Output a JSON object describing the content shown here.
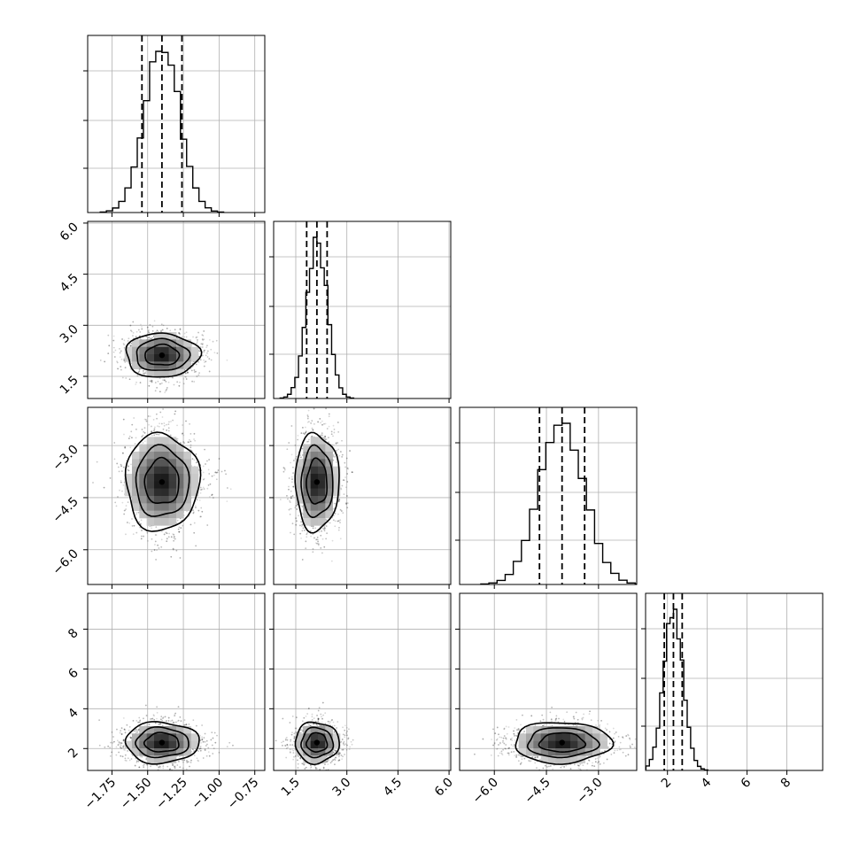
{
  "chart_data": {
    "type": "corner",
    "title": "",
    "parameters": [
      {
        "label": "",
        "range": [
          -1.92,
          -0.68
        ],
        "ticks": [
          -1.75,
          -1.5,
          -1.25,
          -1.0,
          -0.75
        ],
        "tick_labels": [
          "−1.75",
          "−1.50",
          "−1.25",
          "−1.00",
          "−0.75"
        ],
        "mean": -1.4,
        "std": 0.12,
        "quantiles": [
          -1.54,
          -1.4,
          -1.26
        ]
      },
      {
        "label": "",
        "range": [
          0.85,
          6.05
        ],
        "ticks": [
          1.5,
          3.0,
          4.5,
          6.0
        ],
        "tick_labels": [
          "1.5",
          "3.0",
          "4.5",
          "6.0"
        ],
        "mean": 2.12,
        "std": 0.3,
        "quantiles": [
          1.82,
          2.12,
          2.42
        ]
      },
      {
        "label": "",
        "range": [
          -7.0,
          -1.9
        ],
        "ticks": [
          -6.0,
          -4.5,
          -3.0
        ],
        "tick_labels": [
          "−6.0",
          "−4.5",
          "−3.0"
        ],
        "mean": -4.05,
        "std": 0.65,
        "quantiles": [
          -4.7,
          -4.05,
          -3.4
        ]
      },
      {
        "label": "",
        "range": [
          0.9,
          9.8
        ],
        "ticks": [
          2,
          4,
          6,
          8
        ],
        "tick_labels": [
          "2",
          "4",
          "6",
          "8"
        ],
        "mean": 2.3,
        "std": 0.48,
        "quantiles": [
          1.84,
          2.3,
          2.74
        ]
      }
    ],
    "histogram_bins": 20,
    "density_levels": [
      0.118,
      0.393,
      0.675,
      0.864
    ],
    "grid": true,
    "legend": "none"
  }
}
